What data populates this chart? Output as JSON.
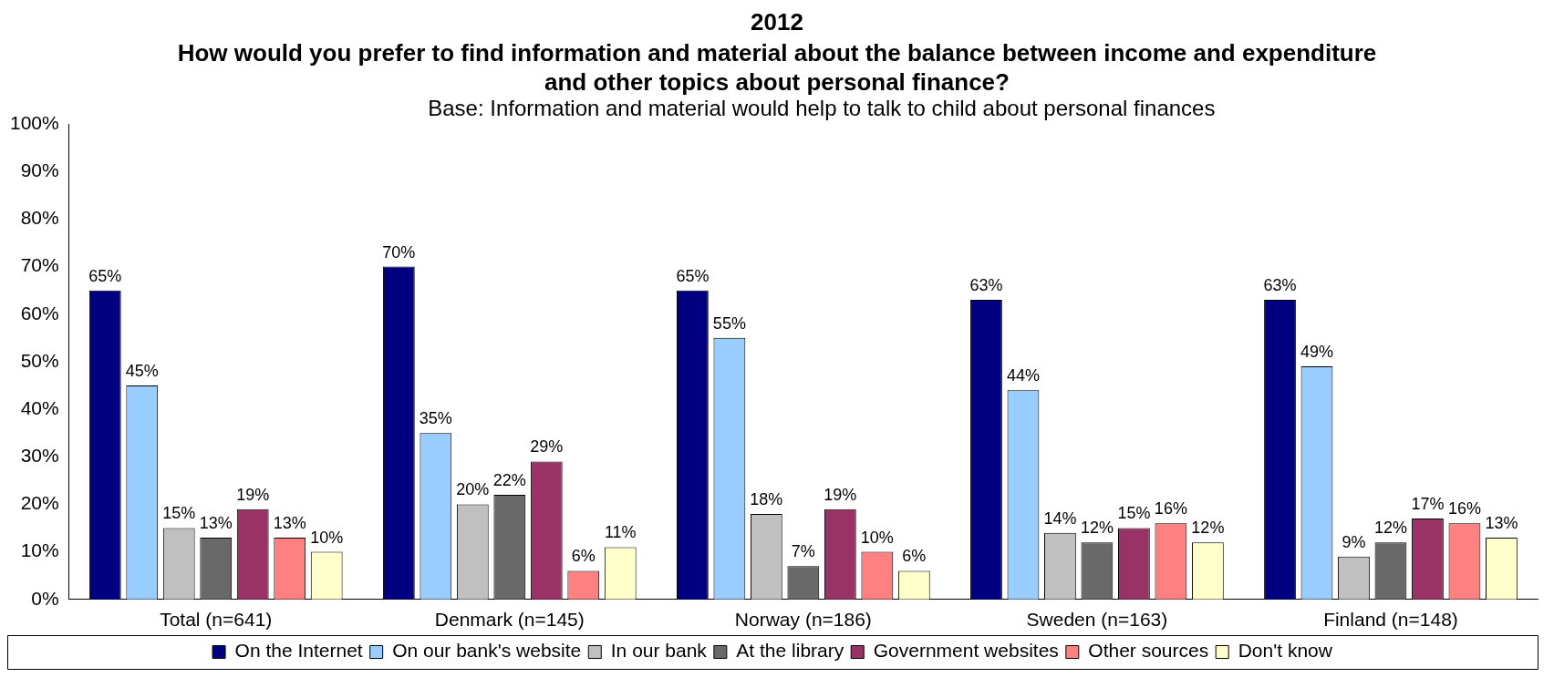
{
  "chart_data": {
    "type": "bar",
    "title": "2012",
    "subtitle": "How would you prefer to find information and material about the balance between income and expenditure and other topics about personal finance?",
    "annotations": [
      "Base: Information and material would help to talk to child about personal finances"
    ],
    "categories": [
      "Total (n=641)",
      "Denmark (n=145)",
      "Norway (n=186)",
      "Sweden (n=163)",
      "Finland (n=148)"
    ],
    "series": [
      {
        "name": "On the Internet",
        "color": "#000080",
        "values": [
          65,
          70,
          65,
          63,
          63
        ],
        "value_labels": [
          "65%",
          "70%",
          "65%",
          "63%",
          "63%"
        ]
      },
      {
        "name": "On our bank's website",
        "color": "#99ccff",
        "values": [
          45,
          35,
          55,
          44,
          49
        ],
        "value_labels": [
          "45%",
          "35%",
          "55%",
          "44%",
          "49%"
        ]
      },
      {
        "name": "In our bank",
        "color": "#c0c0c0",
        "values": [
          15,
          20,
          18,
          14,
          9
        ],
        "value_labels": [
          "15%",
          "20%",
          "18%",
          "14%",
          "9%"
        ]
      },
      {
        "name": "At the library",
        "color": "#696969",
        "values": [
          13,
          22,
          7,
          12,
          12
        ],
        "value_labels": [
          "13%",
          "22%",
          "7%",
          "12%",
          "12%"
        ]
      },
      {
        "name": "Government websites",
        "color": "#993366",
        "values": [
          19,
          29,
          19,
          15,
          17
        ],
        "value_labels": [
          "19%",
          "29%",
          "19%",
          "15%",
          "17%"
        ]
      },
      {
        "name": "Other sources",
        "color": "#ff8080",
        "values": [
          13,
          6,
          10,
          16,
          16
        ],
        "value_labels": [
          "13%",
          "6%",
          "10%",
          "16%",
          "16%"
        ]
      },
      {
        "name": "Don't know",
        "color": "#ffffcc",
        "values": [
          10,
          11,
          6,
          12,
          13
        ],
        "value_labels": [
          "10%",
          "11%",
          "6%",
          "12%",
          "13%"
        ]
      }
    ],
    "ylim": [
      0,
      100
    ],
    "yticks": [
      {
        "value": 0,
        "label": "0%"
      },
      {
        "value": 10,
        "label": "10%"
      },
      {
        "value": 20,
        "label": "20%"
      },
      {
        "value": 30,
        "label": "30%"
      },
      {
        "value": 40,
        "label": "40%"
      },
      {
        "value": 50,
        "label": "50%"
      },
      {
        "value": 60,
        "label": "60%"
      },
      {
        "value": 70,
        "label": "70%"
      },
      {
        "value": 80,
        "label": "80%"
      },
      {
        "value": 90,
        "label": "90%"
      },
      {
        "value": 100,
        "label": "100%"
      }
    ],
    "grid": false,
    "legend": "bottom"
  }
}
